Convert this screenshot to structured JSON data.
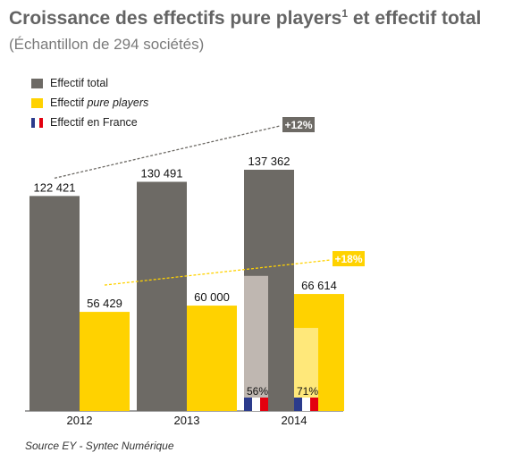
{
  "title_main": "Croissance des effectifs pure players",
  "title_sup": "1",
  "title_end": " et effectif total",
  "subtitle": "(Échantillon de 294 sociétés)",
  "legend": [
    {
      "label": "Effectif total",
      "color": "#6d6a65"
    },
    {
      "label_plain": "Effectif ",
      "label_italic": "pure players",
      "color": "#ffd200"
    },
    {
      "label": "Effectif en France",
      "flag": [
        "#2b3b8c",
        "#ffffff",
        "#e3000f"
      ]
    }
  ],
  "source": "Source EY - Syntec Numérique",
  "chart_data": {
    "type": "bar",
    "categories": [
      "2012",
      "2013",
      "2014"
    ],
    "series": [
      {
        "name": "Effectif total",
        "values": [
          122421,
          130491,
          137362
        ],
        "labels": [
          "122 421",
          "130 491",
          "137 362"
        ],
        "color": "#6d6a65"
      },
      {
        "name": "Effectif pure players",
        "values": [
          56429,
          60000,
          66614
        ],
        "labels": [
          "56 429",
          "60 000",
          "66 614"
        ],
        "color": "#ffd200"
      }
    ],
    "france_share": {
      "category": "2014",
      "total_pct": 56,
      "pure_players_pct": 71,
      "total_label": "56%",
      "pure_players_label": "71%"
    },
    "growth": [
      {
        "series": "Effectif total",
        "label": "+12%",
        "color": "#6d6a65"
      },
      {
        "series": "Effectif pure players",
        "label": "+18%",
        "color": "#ffd200"
      }
    ],
    "ylim": [
      0,
      160000
    ]
  }
}
